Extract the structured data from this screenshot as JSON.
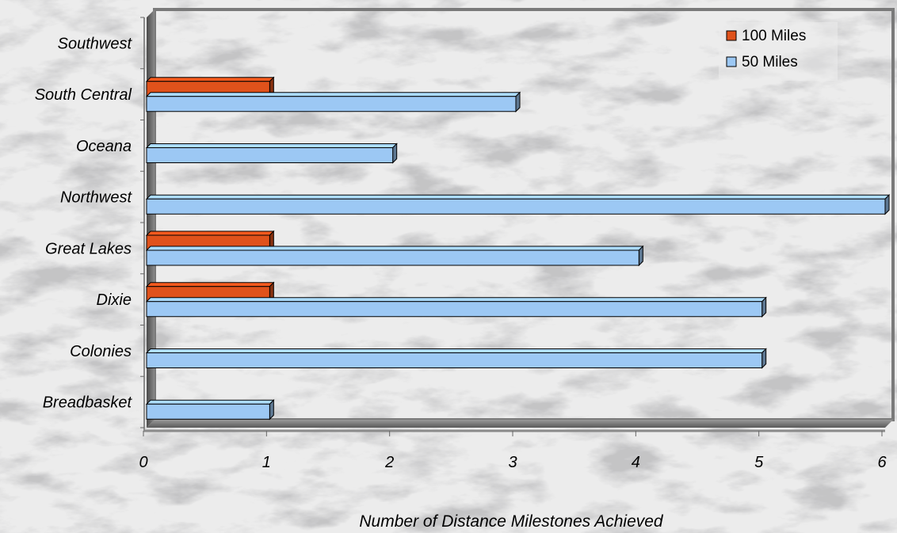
{
  "chart_data": {
    "type": "bar",
    "orientation": "horizontal",
    "style": "3d-clustered",
    "categories": [
      "Breadbasket",
      "Colonies",
      "Dixie",
      "Great Lakes",
      "Northwest",
      "Oceana",
      "South Central",
      "Southwest"
    ],
    "series": [
      {
        "name": "50 Miles",
        "values": [
          1,
          5,
          5,
          4,
          6,
          2,
          3,
          0
        ],
        "color": "#9cc8f4"
      },
      {
        "name": "100 Miles",
        "values": [
          0,
          0,
          1,
          1,
          0,
          0,
          1,
          0
        ],
        "color": "#e0521b"
      }
    ],
    "xlabel": "Number of Distance Milestones Achieved",
    "ylabel": "",
    "xlim": [
      0,
      6
    ],
    "xticks": [
      "0",
      "1",
      "2",
      "3",
      "4",
      "5",
      "6"
    ],
    "grid": false,
    "legend": {
      "position": "top-right",
      "entries": [
        "100 Miles",
        "50 Miles"
      ]
    },
    "background": "marble texture"
  }
}
